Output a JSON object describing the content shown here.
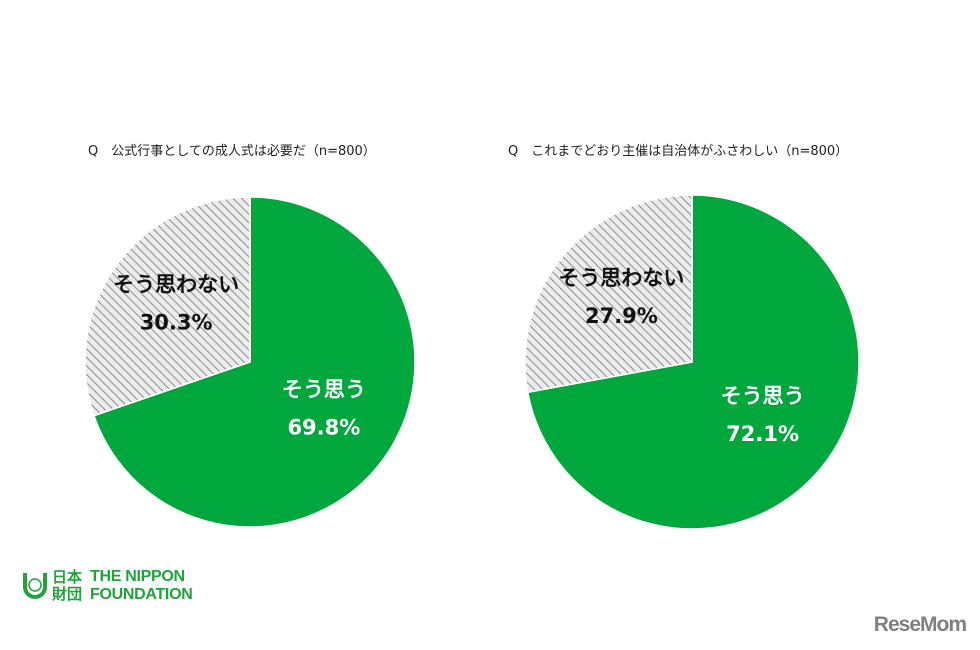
{
  "chart_data": [
    {
      "type": "pie",
      "title": "Q　公式行事としての成人式は必要だ（n=800）",
      "slices": [
        {
          "label": "そう思う",
          "value": 69.8,
          "value_label": "69.8%",
          "color": "#00a73c",
          "pattern": "solid"
        },
        {
          "label": "そう思わない",
          "value": 30.3,
          "value_label": "30.3%",
          "color": "#d9d9d9",
          "pattern": "diagonal-hatch"
        }
      ]
    },
    {
      "type": "pie",
      "title": "Q　これまでどおり主催は自治体がふさわしい（n=800）",
      "slices": [
        {
          "label": "そう思う",
          "value": 72.1,
          "value_label": "72.1%",
          "color": "#00a73c",
          "pattern": "solid"
        },
        {
          "label": "そう思わない",
          "value": 27.9,
          "value_label": "27.9%",
          "color": "#d9d9d9",
          "pattern": "diagonal-hatch"
        }
      ]
    }
  ],
  "logo": {
    "jp": "日本財団",
    "line1": "THE NIPPON",
    "line2": "FOUNDATION"
  },
  "watermark": "ReseMom"
}
